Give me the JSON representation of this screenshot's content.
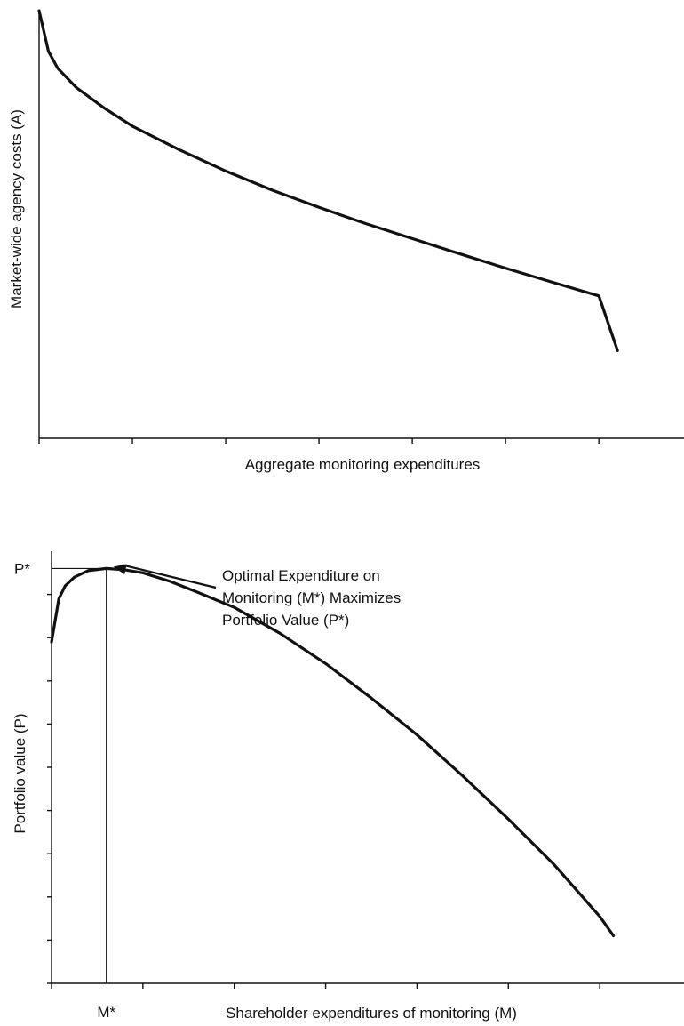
{
  "chart_data": [
    {
      "type": "line",
      "xlabel": "Aggregate monitoring expenditures",
      "ylabel": "Market-wide agency costs (A)",
      "xlim": [
        0,
        7
      ],
      "ylim": [
        0,
        10
      ],
      "x_ticks": [
        0,
        1,
        2,
        3,
        4,
        5,
        6
      ],
      "grid": false,
      "series": [
        {
          "x": [
            0,
            0.1,
            0.2,
            0.4,
            0.7,
            1.0,
            1.5,
            2.0,
            2.5,
            3.0,
            3.5,
            4.0,
            4.5,
            5.0,
            5.5,
            6.0,
            6.2
          ],
          "values": [
            10.0,
            9.05,
            8.65,
            8.2,
            7.72,
            7.3,
            6.75,
            6.25,
            5.8,
            5.4,
            5.02,
            4.67,
            4.32,
            3.98,
            3.65,
            3.33,
            2.05
          ]
        }
      ]
    },
    {
      "type": "line",
      "xlabel": "Shareholder expenditures of monitoring (M)",
      "ylabel": "Portfolio value (P)",
      "xlim": [
        0,
        7
      ],
      "ylim": [
        0,
        10
      ],
      "x_ticks": [
        0,
        1,
        2,
        3,
        4,
        5,
        6
      ],
      "y_ticks": [
        0,
        1,
        2,
        3,
        4,
        5,
        6,
        7,
        8,
        9
      ],
      "grid": false,
      "optimum": {
        "x_label": "M*",
        "y_label": "P*",
        "x": 0.6,
        "y": 9.6
      },
      "annotation": {
        "lines": [
          "Optimal Expenditure on",
          "Monitoring (M*) Maximizes",
          "Portfolio Value (P*)"
        ]
      },
      "series": [
        {
          "x": [
            0,
            0.08,
            0.15,
            0.25,
            0.4,
            0.6,
            0.8,
            1.0,
            1.3,
            1.6,
            2.0,
            2.5,
            3.0,
            3.5,
            4.0,
            4.5,
            5.0,
            5.5,
            6.0,
            6.15
          ],
          "values": [
            7.9,
            8.9,
            9.2,
            9.4,
            9.55,
            9.6,
            9.57,
            9.5,
            9.3,
            9.05,
            8.7,
            8.1,
            7.4,
            6.6,
            5.75,
            4.8,
            3.8,
            2.75,
            1.55,
            1.1
          ]
        }
      ]
    }
  ]
}
